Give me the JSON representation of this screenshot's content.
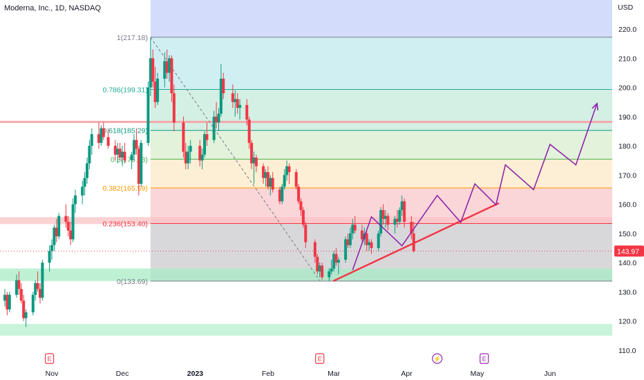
{
  "header": {
    "title": "Moderna, Inc., 1D, NASDAQ"
  },
  "axis": {
    "currency": "USD"
  },
  "last_price": {
    "label": "143.97",
    "value": 143.97,
    "color": "#f23645"
  },
  "colors": {
    "up": "#089981",
    "down": "#f23645",
    "projection": "#8e24aa",
    "trendline": "#f23645",
    "support_zone": "#6fdc9a"
  },
  "events": [
    {
      "label": "E",
      "date": "2022-10-31",
      "kind": "earnings"
    },
    {
      "label": "E",
      "date": "2023-02-23",
      "kind": "earnings"
    },
    {
      "label": "⚡",
      "date": "2023-04-14",
      "kind": "dividend"
    },
    {
      "label": "E",
      "date": "2023-05-04",
      "kind": "earnings"
    }
  ],
  "chart_data": {
    "type": "candlestick",
    "symbol": "Moderna, Inc.",
    "interval": "1D",
    "exchange": "NASDAQ",
    "ylim": [
      105,
      230
    ],
    "y_ticks": [
      110,
      120,
      130,
      140,
      150,
      160,
      170,
      180,
      190,
      200,
      210,
      220
    ],
    "x_ticks": [
      {
        "label": "Nov",
        "date": "2022-11-01"
      },
      {
        "label": "Dec",
        "date": "2022-12-01"
      },
      {
        "label": "2023",
        "date": "2023-01-01",
        "bold": true
      },
      {
        "label": "Feb",
        "date": "2023-02-01"
      },
      {
        "label": "Mar",
        "date": "2023-03-01"
      },
      {
        "label": "Apr",
        "date": "2023-04-01"
      },
      {
        "label": "May",
        "date": "2023-05-01"
      },
      {
        "label": "Jun",
        "date": "2023-06-01"
      }
    ],
    "fibonacci": {
      "start_date": "2022-12-13",
      "end_date": "2023-03-01",
      "levels": [
        {
          "ratio": 1,
          "price": 217.18,
          "label": "1(217.18)",
          "color": "#787b86",
          "fill": "#e3e3e6"
        },
        {
          "ratio": 0.786,
          "price": 199.31,
          "label": "0.786(199.31)",
          "color": "#22ab94",
          "fill": "#cdeef1"
        },
        {
          "ratio": 0.618,
          "price": 185.29,
          "label": "0.618(185.29)",
          "color": "#089981",
          "fill": "#d2eee2"
        },
        {
          "ratio": 0.5,
          "price": 175.43,
          "label": "0.5(175.43)",
          "color": "#4caf50",
          "fill": "#e2f1d9"
        },
        {
          "ratio": 0.382,
          "price": 165.59,
          "label": "0.382(165.59)",
          "color": "#ff9800",
          "fill": "#fdeed3"
        },
        {
          "ratio": 0.236,
          "price": 153.4,
          "label": "0.236(153.40)",
          "color": "#f23645",
          "fill": "#fbd4d6"
        },
        {
          "ratio": 0,
          "price": 133.69,
          "label": "0(133.69)",
          "color": "#787b86",
          "fill": "#d6d6d9"
        }
      ],
      "above_fill": "#d3ddfb"
    },
    "zones": [
      {
        "type": "resistance-line",
        "price": 188.2,
        "color": "#f5a8ad"
      },
      {
        "type": "resistance",
        "from": 153.2,
        "to": 155.6,
        "color": "#f9c3c6"
      },
      {
        "type": "support",
        "from": 133.7,
        "to": 138.0,
        "color": "#a8ebc6"
      },
      {
        "type": "support",
        "from": 115.0,
        "to": 119.0,
        "color": "#b5f0cf"
      }
    ],
    "trendline": {
      "from": {
        "date": "2023-03-01",
        "price": 133.8
      },
      "to": {
        "date": "2023-05-10",
        "price": 160.3
      }
    },
    "fib_diagonal": {
      "from": {
        "date": "2022-12-13",
        "price": 217.18
      },
      "to": {
        "date": "2023-02-23",
        "price": 133.9
      }
    },
    "projection": [
      {
        "date": "2023-03-09",
        "price": 137.5
      },
      {
        "date": "2023-03-17",
        "price": 155.7
      },
      {
        "date": "2023-03-30",
        "price": 145.8
      },
      {
        "date": "2023-04-14",
        "price": 163.0
      },
      {
        "date": "2023-04-24",
        "price": 153.8
      },
      {
        "date": "2023-04-30",
        "price": 167.0
      },
      {
        "date": "2023-05-09",
        "price": 159.8
      },
      {
        "date": "2023-05-13",
        "price": 173.5
      },
      {
        "date": "2023-05-25",
        "price": 165.0
      },
      {
        "date": "2023-06-01",
        "price": 180.5
      },
      {
        "date": "2023-06-12",
        "price": 173.5
      },
      {
        "date": "2023-06-21",
        "price": 194.5
      }
    ],
    "candles": [
      [
        "2022-10-12",
        127,
        131,
        125,
        129
      ],
      [
        "2022-10-13",
        129,
        130,
        122,
        124
      ],
      [
        "2022-10-14",
        124,
        130,
        123,
        129
      ],
      [
        "2022-10-17",
        129,
        136,
        128,
        134
      ],
      [
        "2022-10-18",
        134,
        137,
        129,
        131
      ],
      [
        "2022-10-19",
        131,
        133,
        126,
        127
      ],
      [
        "2022-10-20",
        127,
        129,
        120,
        121
      ],
      [
        "2022-10-21",
        121,
        124,
        118,
        123
      ],
      [
        "2022-10-24",
        123,
        130,
        122,
        129
      ],
      [
        "2022-10-25",
        129,
        134,
        127,
        133
      ],
      [
        "2022-10-26",
        133,
        137,
        130,
        131
      ],
      [
        "2022-10-27",
        131,
        133,
        126,
        128
      ],
      [
        "2022-10-28",
        128,
        141,
        127,
        140
      ],
      [
        "2022-10-31",
        140,
        146,
        137,
        144
      ],
      [
        "2022-11-01",
        144,
        148,
        141,
        146
      ],
      [
        "2022-11-02",
        146,
        153,
        144,
        152
      ],
      [
        "2022-11-03",
        152,
        155,
        147,
        149
      ],
      [
        "2022-11-04",
        149,
        157,
        148,
        156
      ],
      [
        "2022-11-07",
        156,
        160,
        152,
        154
      ],
      [
        "2022-11-08",
        154,
        156,
        149,
        151
      ],
      [
        "2022-11-09",
        151,
        154,
        146,
        148
      ],
      [
        "2022-11-10",
        148,
        162,
        147,
        160
      ],
      [
        "2022-11-11",
        160,
        165,
        157,
        163
      ],
      [
        "2022-11-14",
        163,
        168,
        160,
        166
      ],
      [
        "2022-11-15",
        166,
        171,
        163,
        169
      ],
      [
        "2022-11-16",
        169,
        176,
        167,
        174
      ],
      [
        "2022-11-17",
        174,
        182,
        172,
        180
      ],
      [
        "2022-11-18",
        180,
        186,
        177,
        184
      ],
      [
        "2022-11-21",
        184,
        188,
        179,
        181
      ],
      [
        "2022-11-22",
        181,
        187,
        180,
        186
      ],
      [
        "2022-11-23",
        186,
        188,
        182,
        183
      ],
      [
        "2022-11-25",
        183,
        186,
        179,
        180
      ],
      [
        "2022-11-28",
        180,
        182,
        175,
        177
      ],
      [
        "2022-11-29",
        177,
        181,
        174,
        179
      ],
      [
        "2022-11-30",
        179,
        181,
        175,
        176
      ],
      [
        "2022-12-01",
        176,
        180,
        173,
        178
      ],
      [
        "2022-12-02",
        178,
        181,
        174,
        175
      ],
      [
        "2022-12-05",
        175,
        178,
        172,
        177
      ],
      [
        "2022-12-06",
        177,
        184,
        175,
        182
      ],
      [
        "2022-12-07",
        182,
        186,
        177,
        179
      ],
      [
        "2022-12-08",
        179,
        180,
        163,
        167
      ],
      [
        "2022-12-09",
        167,
        182,
        166,
        181
      ],
      [
        "2022-12-12",
        181,
        202,
        180,
        200
      ],
      [
        "2022-12-13",
        200,
        217,
        197,
        210
      ],
      [
        "2022-12-14",
        210,
        213,
        200,
        202
      ],
      [
        "2022-12-15",
        202,
        207,
        193,
        195
      ],
      [
        "2022-12-16",
        195,
        205,
        194,
        203
      ],
      [
        "2022-12-19",
        203,
        212,
        200,
        209
      ],
      [
        "2022-12-20",
        209,
        213,
        203,
        205
      ],
      [
        "2022-12-21",
        205,
        211,
        202,
        210
      ],
      [
        "2022-12-22",
        210,
        211,
        195,
        198
      ],
      [
        "2022-12-23",
        198,
        201,
        185,
        188
      ],
      [
        "2022-12-27",
        188,
        190,
        176,
        178
      ],
      [
        "2022-12-28",
        178,
        181,
        172,
        174
      ],
      [
        "2022-12-29",
        174,
        180,
        172,
        178
      ],
      [
        "2022-12-30",
        178,
        182,
        174,
        180
      ],
      [
        "2023-01-03",
        180,
        182,
        173,
        175
      ],
      [
        "2023-01-04",
        175,
        179,
        172,
        177
      ],
      [
        "2023-01-05",
        177,
        185,
        176,
        184
      ],
      [
        "2023-01-06",
        184,
        188,
        180,
        182
      ],
      [
        "2023-01-09",
        182,
        192,
        181,
        190
      ],
      [
        "2023-01-10",
        190,
        195,
        186,
        188
      ],
      [
        "2023-01-11",
        188,
        193,
        185,
        191
      ],
      [
        "2023-01-12",
        191,
        208,
        190,
        203
      ],
      [
        "2023-01-13",
        203,
        205,
        196,
        198
      ],
      [
        "2023-01-17",
        198,
        201,
        193,
        195
      ],
      [
        "2023-01-18",
        195,
        199,
        190,
        196
      ],
      [
        "2023-01-19",
        196,
        198,
        191,
        193
      ],
      [
        "2023-01-20",
        193,
        196,
        189,
        194
      ],
      [
        "2023-01-23",
        194,
        196,
        187,
        189
      ],
      [
        "2023-01-24",
        189,
        190,
        179,
        181
      ],
      [
        "2023-01-25",
        181,
        182,
        172,
        174
      ],
      [
        "2023-01-26",
        174,
        178,
        167,
        176
      ],
      [
        "2023-01-27",
        176,
        177,
        171,
        173
      ],
      [
        "2023-01-30",
        173,
        174,
        167,
        169
      ],
      [
        "2023-01-31",
        169,
        172,
        166,
        171
      ],
      [
        "2023-02-01",
        171,
        173,
        165,
        166
      ],
      [
        "2023-02-02",
        166,
        170,
        163,
        169
      ],
      [
        "2023-02-03",
        169,
        171,
        164,
        165
      ],
      [
        "2023-02-06",
        165,
        166,
        160,
        161
      ],
      [
        "2023-02-07",
        161,
        167,
        160,
        166
      ],
      [
        "2023-02-08",
        166,
        172,
        165,
        170
      ],
      [
        "2023-02-09",
        170,
        175,
        168,
        173
      ],
      [
        "2023-02-10",
        173,
        174,
        167,
        171
      ],
      [
        "2023-02-13",
        171,
        172,
        165,
        166
      ],
      [
        "2023-02-14",
        166,
        167,
        160,
        161
      ],
      [
        "2023-02-15",
        161,
        162,
        156,
        158
      ],
      [
        "2023-02-16",
        158,
        159,
        152,
        153
      ],
      [
        "2023-02-17",
        153,
        154,
        145,
        147
      ],
      [
        "2023-02-21",
        147,
        148,
        140,
        142
      ],
      [
        "2023-02-22",
        142,
        143,
        136,
        137
      ],
      [
        "2023-02-23",
        137,
        140,
        135,
        139
      ],
      [
        "2023-02-24",
        139,
        140,
        134,
        135
      ],
      [
        "2023-02-27",
        135,
        138,
        133.7,
        137
      ],
      [
        "2023-02-28",
        137,
        141,
        136,
        138
      ],
      [
        "2023-03-01",
        138,
        144,
        137,
        143
      ],
      [
        "2023-03-02",
        143,
        145,
        139,
        140
      ],
      [
        "2023-03-03",
        140,
        142,
        136,
        141
      ],
      [
        "2023-03-06",
        141,
        149,
        140,
        148
      ],
      [
        "2023-03-07",
        148,
        150,
        145,
        146
      ],
      [
        "2023-03-08",
        146,
        152,
        145,
        150
      ],
      [
        "2023-03-09",
        150,
        155,
        148,
        153
      ],
      [
        "2023-03-10",
        153,
        156,
        150,
        151
      ],
      [
        "2023-03-13",
        151,
        153,
        147,
        148
      ],
      [
        "2023-03-14",
        148,
        152,
        146,
        150
      ],
      [
        "2023-03-15",
        150,
        151,
        144,
        146
      ],
      [
        "2023-03-16",
        146,
        148,
        144,
        147
      ],
      [
        "2023-03-17",
        147,
        148,
        143,
        145
      ],
      [
        "2023-03-20",
        145,
        151,
        144,
        150
      ],
      [
        "2023-03-21",
        150,
        159,
        149,
        158
      ],
      [
        "2023-03-22",
        158,
        160,
        153,
        155
      ],
      [
        "2023-03-23",
        155,
        158,
        152,
        156
      ],
      [
        "2023-03-24",
        156,
        157,
        151,
        153
      ],
      [
        "2023-03-27",
        153,
        156,
        150,
        155
      ],
      [
        "2023-03-28",
        155,
        158,
        152,
        154
      ],
      [
        "2023-03-29",
        154,
        159,
        153,
        158
      ],
      [
        "2023-03-30",
        158,
        163,
        156,
        161
      ],
      [
        "2023-03-31",
        161,
        162,
        152,
        154
      ],
      [
        "2023-04-03",
        154,
        156,
        148,
        150
      ],
      [
        "2023-04-04",
        150,
        154,
        143.5,
        143.97
      ]
    ]
  }
}
